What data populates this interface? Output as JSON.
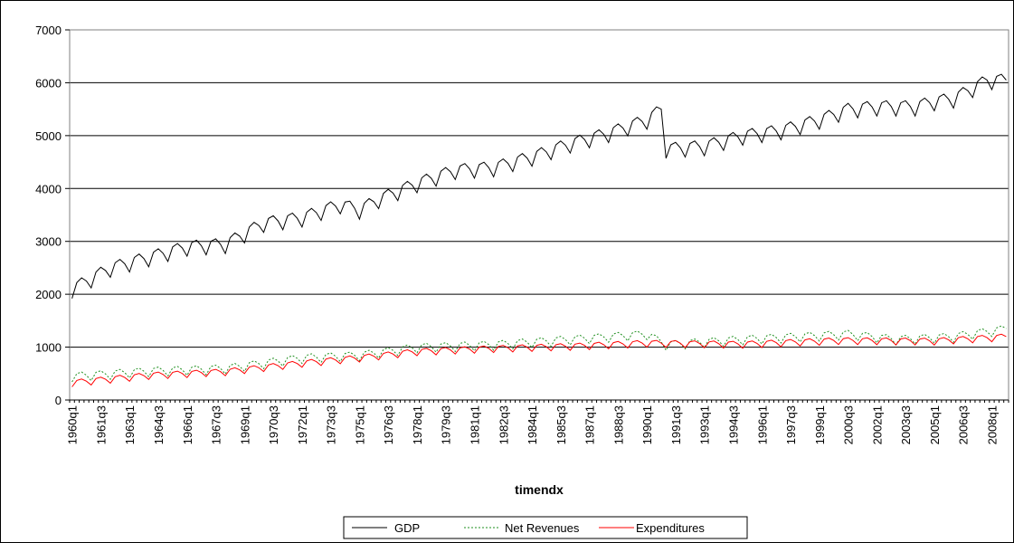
{
  "chart_data": {
    "type": "line",
    "title": "",
    "xlabel": "timendx",
    "ylabel": "",
    "ylim": [
      0,
      7000
    ],
    "yticks": [
      "0",
      "1000",
      "2000",
      "3000",
      "4000",
      "5000",
      "6000",
      "7000"
    ],
    "x_start": "1960q1",
    "x_end": "2008q4",
    "xtick_labels": [
      "1960q1",
      "1961q3",
      "1963q1",
      "1964q3",
      "1966q1",
      "1967q3",
      "1969q1",
      "1970q3",
      "1972q1",
      "1973q3",
      "1975q1",
      "1976q3",
      "1978q1",
      "1979q3",
      "1981q1",
      "1982q3",
      "1984q1",
      "1985q3",
      "1987q1",
      "1988q3",
      "1990q1",
      "1991q3",
      "1993q1",
      "1994q3",
      "1996q1",
      "1997q3",
      "1999q1",
      "2000q3",
      "2002q1",
      "2003q3",
      "2005q1",
      "2006q3",
      "2008q1"
    ],
    "grid": "horizontal",
    "legend": "bottom",
    "series": [
      {
        "name": "GDP",
        "color": "#000000",
        "dash": "solid",
        "anchors": [
          [
            "1960q1",
            2100
          ],
          [
            "1962q1",
            2500
          ],
          [
            "1964q1",
            2700
          ],
          [
            "1966q1",
            2900
          ],
          [
            "1968q1",
            2950
          ],
          [
            "1970q1",
            3350
          ],
          [
            "1972q1",
            3450
          ],
          [
            "1974q1",
            3700
          ],
          [
            "1975q1",
            3600
          ],
          [
            "1976q1",
            3800
          ],
          [
            "1978q1",
            4100
          ],
          [
            "1980q1",
            4350
          ],
          [
            "1982q1",
            4400
          ],
          [
            "1984q1",
            4600
          ],
          [
            "1986q1",
            4850
          ],
          [
            "1988q1",
            5050
          ],
          [
            "1990q1",
            5300
          ],
          [
            "1990q4",
            5500
          ],
          [
            "1991q1",
            4750
          ],
          [
            "1993q1",
            4800
          ],
          [
            "1995q1",
            5000
          ],
          [
            "1997q1",
            5100
          ],
          [
            "1999q1",
            5300
          ],
          [
            "2000q3",
            5500
          ],
          [
            "2002q1",
            5550
          ],
          [
            "2004q1",
            5550
          ],
          [
            "2005q1",
            5650
          ],
          [
            "2006q1",
            5700
          ],
          [
            "2007q1",
            5900
          ],
          [
            "2007q4",
            6050
          ],
          [
            "2008q4",
            6050
          ]
        ],
        "seasonal_amplitude": 200
      },
      {
        "name": "Net Revenues",
        "color": "#1f8f1f",
        "dash": "dotted",
        "anchors": [
          [
            "1960q1",
            450
          ],
          [
            "1964q1",
            550
          ],
          [
            "1968q1",
            600
          ],
          [
            "1972q1",
            800
          ],
          [
            "1975q1",
            850
          ],
          [
            "1978q1",
            1000
          ],
          [
            "1982q1",
            1050
          ],
          [
            "1986q1",
            1150
          ],
          [
            "1990q1",
            1250
          ],
          [
            "1991q1",
            1050
          ],
          [
            "1995q1",
            1150
          ],
          [
            "2000q3",
            1250
          ],
          [
            "2003q1",
            1150
          ],
          [
            "2006q1",
            1200
          ],
          [
            "2008q4",
            1350
          ]
        ],
        "seasonal_amplitude": 120
      },
      {
        "name": "Expenditures",
        "color": "#ff0000",
        "dash": "solid",
        "anchors": [
          [
            "1960q1",
            330
          ],
          [
            "1964q1",
            470
          ],
          [
            "1968q1",
            540
          ],
          [
            "1972q1",
            700
          ],
          [
            "1975q1",
            800
          ],
          [
            "1978q1",
            920
          ],
          [
            "1982q1",
            980
          ],
          [
            "1986q1",
            1020
          ],
          [
            "1990q1",
            1080
          ],
          [
            "1995q1",
            1060
          ],
          [
            "2000q1",
            1130
          ],
          [
            "2005q1",
            1120
          ],
          [
            "2008q4",
            1200
          ]
        ],
        "seasonal_amplitude": 90
      }
    ]
  }
}
